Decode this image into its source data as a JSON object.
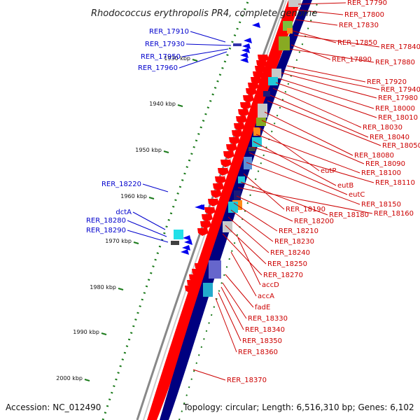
{
  "title": "Rhodococcus erythropolis PR4, complete genome",
  "accession": "Accession: NC_012490",
  "topology": "Topology: circular; Length: 6,516,310 bp; Genes: 6,102",
  "colors": {
    "forward_strand": "#ff0000",
    "reverse_strand": "#000080",
    "forward_label": "#cc0000",
    "reverse_label": "#0000cc",
    "tick": "#1a7a1a"
  },
  "kbp_labels": [
    "1930 kbp",
    "1940 kbp",
    "1950 kbp",
    "1960 kbp",
    "1970 kbp",
    "1980 kbp",
    "1990 kbp",
    "2000 kbp"
  ],
  "left_genes": [
    "RER_17910",
    "RER_17930",
    "RER_17950",
    "RER_17960",
    "RER_18220",
    "dctA",
    "RER_18280",
    "RER_18290"
  ],
  "right_genes": [
    "RER_17790",
    "RER_17800",
    "RER_17830",
    "RER_17850",
    "RER_17840",
    "RER_17890",
    "RER_17880",
    "RER_17920",
    "RER_17940",
    "RER_17980",
    "RER_18000",
    "RER_18010",
    "RER_18030",
    "RER_18040",
    "RER_18050",
    "RER_18080",
    "RER_18090",
    "eutP",
    "RER_18100",
    "eutB",
    "RER_18110",
    "eutC",
    "RER_18150",
    "RER_18190",
    "RER_18180",
    "RER_18160",
    "RER_18200",
    "RER_18210",
    "RER_18230",
    "RER_18240",
    "RER_18250",
    "RER_18270",
    "accD",
    "accA",
    "fadE",
    "RER_18330",
    "RER_18340",
    "RER_18350",
    "RER_18360",
    "RER_18370"
  ]
}
